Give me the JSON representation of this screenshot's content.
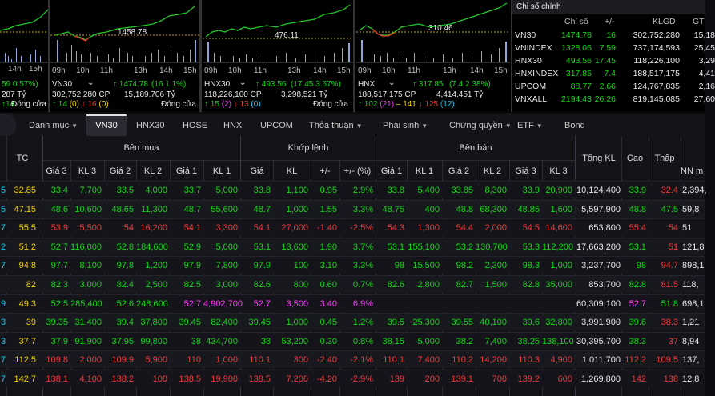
{
  "panels": [
    {
      "key": "p0",
      "chart_value": "",
      "times": [
        "14h",
        "15h"
      ],
      "pct": "59  0.57%)",
      "value_line": "287 Tỷ",
      "adv_line": [
        "14",
        "Đóng cửa"
      ]
    },
    {
      "key": "p1",
      "chart_value": "1458.78",
      "times": [
        "09h",
        "10h",
        "11h",
        "13h",
        "14h",
        "15h"
      ],
      "name": "VN30",
      "index": "1474.78",
      "change": "(16  1.1%)",
      "volume": "302,752,280 CP",
      "value": "15,189.706 Tỷ",
      "adv": [
        "14",
        "0",
        "16",
        "0"
      ],
      "status": "Đóng cửa"
    },
    {
      "key": "p2",
      "chart_value": "476.11",
      "times": [
        "09h",
        "10h",
        "11h",
        "13h",
        "14h",
        "15h"
      ],
      "name": "HNX30",
      "index": "493.56",
      "change": "(17.45  3.67%)",
      "volume": "118,226,100 CP",
      "value": "3,298.521 Tỷ",
      "adv": [
        "15",
        "2",
        "13",
        "0"
      ],
      "status": "Đóng cửa"
    },
    {
      "key": "p3",
      "chart_value": "310.46",
      "times": [
        "09h",
        "10h",
        "11h",
        "13h",
        "14h",
        "15h"
      ],
      "name": "HNX",
      "index": "317.85",
      "change": "(7.4  2.38%)",
      "volume": "188,517,175 CP",
      "value": "4,414.451 Tỷ",
      "adv": [
        "102",
        "21",
        "141",
        "125",
        "12"
      ],
      "status": "Đóng cửa"
    }
  ],
  "index_table": {
    "title": "Chỉ số chính",
    "headers": [
      "Chỉ số",
      "+/-",
      "KLGD",
      "GT"
    ],
    "rows": [
      {
        "name": "VN30",
        "value": "1474.78",
        "change": "16",
        "volume": "302,752,280",
        "gt": "15,18"
      },
      {
        "name": "VNINDEX",
        "value": "1328.05",
        "change": "7.59",
        "volume": "737,174,593",
        "gt": "25,45"
      },
      {
        "name": "HNX30",
        "value": "493.56",
        "change": "17.45",
        "volume": "118,226,100",
        "gt": "3,29"
      },
      {
        "name": "HNXINDEX",
        "value": "317.85",
        "change": "7.4",
        "volume": "188,517,175",
        "gt": "4,41"
      },
      {
        "name": "UPCOM",
        "value": "88.77",
        "change": "2.66",
        "volume": "124,767,835",
        "gt": "2,16"
      },
      {
        "name": "VNXALL",
        "value": "2194.43",
        "change": "26.26",
        "volume": "819,145,085",
        "gt": "27,60"
      }
    ]
  },
  "tabs": [
    {
      "label": "Danh mục",
      "dropdown": true
    },
    {
      "label": "VN30",
      "active": true
    },
    {
      "label": "HNX30"
    },
    {
      "label": "HOSE"
    },
    {
      "label": "HNX"
    },
    {
      "label": "UPCOM"
    },
    {
      "label": "Thỏa thuận",
      "dropdown": true
    },
    {
      "label": "Phái sinh",
      "dropdown": true
    },
    {
      "label": "Chứng quyền",
      "dropdown": true
    },
    {
      "label": "ETF",
      "dropdown": true
    },
    {
      "label": "Bond"
    }
  ],
  "table": {
    "group_headers": {
      "buy": "Bên mua",
      "match": "Khớp lệnh",
      "sell": "Bên bán"
    },
    "headers": {
      "tc": "TC",
      "buy": [
        "Giá 3",
        "KL 3",
        "Giá 2",
        "KL 2",
        "Giá 1",
        "KL 1"
      ],
      "match": [
        "Giá",
        "KL",
        "+/-",
        "+/- (%)"
      ],
      "sell": [
        "Giá 1",
        "KL 1",
        "Giá 2",
        "KL 2",
        "Giá 3",
        "KL 3"
      ],
      "total": "Tổng KL",
      "high": "Cao",
      "low": "Thấp",
      "nn": "NN m"
    },
    "rows": [
      {
        "lead": "5",
        "tc": "32.85",
        "b": [
          [
            "33.4",
            "g"
          ],
          [
            "7,700",
            "g"
          ],
          [
            "33.5",
            "g"
          ],
          [
            "4,000",
            "g"
          ],
          [
            "33.7",
            "g"
          ],
          [
            "5,000",
            "g"
          ]
        ],
        "m": [
          [
            "33.8",
            "g"
          ],
          [
            "1,100",
            "g"
          ],
          [
            "0.95",
            "g"
          ],
          [
            "2.9%",
            "g"
          ]
        ],
        "s": [
          [
            "33.8",
            "g"
          ],
          [
            "5,400",
            "g"
          ],
          [
            "33.85",
            "g"
          ],
          [
            "8,300",
            "g"
          ],
          [
            "33.9",
            "g"
          ],
          [
            "20,900",
            "g"
          ]
        ],
        "tot": "10,124,400",
        "hi": [
          "33.9",
          "g"
        ],
        "lo": [
          "32.4",
          "r"
        ],
        "nn": "2,394,"
      },
      {
        "lead": "5",
        "tc": "47.15",
        "b": [
          [
            "48.6",
            "g"
          ],
          [
            "10,600",
            "g"
          ],
          [
            "48.65",
            "g"
          ],
          [
            "11,300",
            "g"
          ],
          [
            "48.7",
            "g"
          ],
          [
            "55,600",
            "g"
          ]
        ],
        "m": [
          [
            "48.7",
            "g"
          ],
          [
            "1,000",
            "g"
          ],
          [
            "1.55",
            "g"
          ],
          [
            "3.3%",
            "g"
          ]
        ],
        "s": [
          [
            "48.75",
            "g"
          ],
          [
            "400",
            "g"
          ],
          [
            "48.8",
            "g"
          ],
          [
            "68,300",
            "g"
          ],
          [
            "48.85",
            "g"
          ],
          [
            "1,600",
            "g"
          ]
        ],
        "tot": "5,597,900",
        "hi": [
          "48.8",
          "g"
        ],
        "lo": [
          "47.5",
          "g"
        ],
        "nn": "59,8"
      },
      {
        "lead": "7",
        "tc": "55.5",
        "b": [
          [
            "53.9",
            "r"
          ],
          [
            "5,500",
            "r"
          ],
          [
            "54",
            "r"
          ],
          [
            "16,200",
            "r"
          ],
          [
            "54.1",
            "r"
          ],
          [
            "3,300",
            "r"
          ]
        ],
        "m": [
          [
            "54.1",
            "r"
          ],
          [
            "27,000",
            "r"
          ],
          [
            "-1.40",
            "r"
          ],
          [
            "-2.5%",
            "r"
          ]
        ],
        "s": [
          [
            "54.3",
            "r"
          ],
          [
            "1,300",
            "r"
          ],
          [
            "54.4",
            "r"
          ],
          [
            "2,000",
            "r"
          ],
          [
            "54.5",
            "r"
          ],
          [
            "14,600",
            "r"
          ]
        ],
        "tot": "653,800",
        "hi": [
          "55.4",
          "r"
        ],
        "lo": [
          "54",
          "r"
        ],
        "nn": "51"
      },
      {
        "lead": "2",
        "tc": "51.2",
        "b": [
          [
            "52.7",
            "g"
          ],
          [
            "116,000",
            "g"
          ],
          [
            "52.8",
            "g"
          ],
          [
            "184,600",
            "g"
          ],
          [
            "52.9",
            "g"
          ],
          [
            "5,000",
            "g"
          ]
        ],
        "m": [
          [
            "53.1",
            "g"
          ],
          [
            "13,600",
            "g"
          ],
          [
            "1.90",
            "g"
          ],
          [
            "3.7%",
            "g"
          ]
        ],
        "s": [
          [
            "53.1",
            "g"
          ],
          [
            "155,100",
            "g"
          ],
          [
            "53.2",
            "g"
          ],
          [
            "130,700",
            "g"
          ],
          [
            "53.3",
            "g"
          ],
          [
            "112,200",
            "g"
          ]
        ],
        "tot": "17,663,200",
        "hi": [
          "53.1",
          "g"
        ],
        "lo": [
          "51",
          "r"
        ],
        "nn": "121,8"
      },
      {
        "lead": "7",
        "tc": "94.8",
        "b": [
          [
            "97.7",
            "g"
          ],
          [
            "8,100",
            "g"
          ],
          [
            "97.8",
            "g"
          ],
          [
            "1,200",
            "g"
          ],
          [
            "97.9",
            "g"
          ],
          [
            "7,800",
            "g"
          ]
        ],
        "m": [
          [
            "97.9",
            "g"
          ],
          [
            "100",
            "g"
          ],
          [
            "3.10",
            "g"
          ],
          [
            "3.3%",
            "g"
          ]
        ],
        "s": [
          [
            "98",
            "g"
          ],
          [
            "15,500",
            "g"
          ],
          [
            "98.2",
            "g"
          ],
          [
            "2,300",
            "g"
          ],
          [
            "98.3",
            "g"
          ],
          [
            "1,000",
            "g"
          ]
        ],
        "tot": "3,237,700",
        "hi": [
          "98",
          "g"
        ],
        "lo": [
          "94.7",
          "r"
        ],
        "nn": "898,1"
      },
      {
        "lead": "",
        "tc": "82",
        "b": [
          [
            "82.3",
            "g"
          ],
          [
            "3,000",
            "g"
          ],
          [
            "82.4",
            "g"
          ],
          [
            "2,500",
            "g"
          ],
          [
            "82.5",
            "g"
          ],
          [
            "3,000",
            "g"
          ]
        ],
        "m": [
          [
            "82.6",
            "g"
          ],
          [
            "800",
            "g"
          ],
          [
            "0.60",
            "g"
          ],
          [
            "0.7%",
            "g"
          ]
        ],
        "s": [
          [
            "82.6",
            "g"
          ],
          [
            "2,800",
            "g"
          ],
          [
            "82.7",
            "g"
          ],
          [
            "1,500",
            "g"
          ],
          [
            "82.8",
            "g"
          ],
          [
            "35,000",
            "g"
          ]
        ],
        "tot": "853,700",
        "hi": [
          "82.8",
          "g"
        ],
        "lo": [
          "81.5",
          "r"
        ],
        "nn": "118,"
      },
      {
        "lead": "9",
        "tc": "49.3",
        "b": [
          [
            "52.5",
            "g"
          ],
          [
            "285,400",
            "g"
          ],
          [
            "52.6",
            "g"
          ],
          [
            "248,600",
            "g"
          ],
          [
            "52.7",
            "p"
          ],
          [
            "4,902,700",
            "p"
          ]
        ],
        "m": [
          [
            "52.7",
            "p"
          ],
          [
            "3,500",
            "p"
          ],
          [
            "3.40",
            "p"
          ],
          [
            "6.9%",
            "p"
          ]
        ],
        "s": [
          [
            "",
            ""
          ],
          [
            "",
            ""
          ],
          [
            "",
            ""
          ],
          [
            "",
            ""
          ],
          [
            "",
            ""
          ],
          [
            "",
            ""
          ]
        ],
        "tot": "60,309,100",
        "hi": [
          "52.7",
          "p"
        ],
        "lo": [
          "51.8",
          "g"
        ],
        "nn": "698,1"
      },
      {
        "lead": "3",
        "tc": "39",
        "b": [
          [
            "39.35",
            "g"
          ],
          [
            "31,400",
            "g"
          ],
          [
            "39.4",
            "g"
          ],
          [
            "37,800",
            "g"
          ],
          [
            "39.45",
            "g"
          ],
          [
            "82,400",
            "g"
          ]
        ],
        "m": [
          [
            "39.45",
            "g"
          ],
          [
            "1,000",
            "g"
          ],
          [
            "0.45",
            "g"
          ],
          [
            "1.2%",
            "g"
          ]
        ],
        "s": [
          [
            "39.5",
            "g"
          ],
          [
            "25,300",
            "g"
          ],
          [
            "39.55",
            "g"
          ],
          [
            "40,100",
            "g"
          ],
          [
            "39.6",
            "g"
          ],
          [
            "32,800",
            "g"
          ]
        ],
        "tot": "3,991,900",
        "hi": [
          "39.6",
          "g"
        ],
        "lo": [
          "38.3",
          "r"
        ],
        "nn": "1,21"
      },
      {
        "lead": "3",
        "tc": "37.7",
        "b": [
          [
            "37.9",
            "g"
          ],
          [
            "91,900",
            "g"
          ],
          [
            "37.95",
            "g"
          ],
          [
            "99,800",
            "g"
          ],
          [
            "38",
            "g"
          ],
          [
            "434,700",
            "g"
          ]
        ],
        "m": [
          [
            "38",
            "g"
          ],
          [
            "53,200",
            "g"
          ],
          [
            "0.30",
            "g"
          ],
          [
            "0.8%",
            "g"
          ]
        ],
        "s": [
          [
            "38.15",
            "g"
          ],
          [
            "5,000",
            "g"
          ],
          [
            "38.2",
            "g"
          ],
          [
            "7,400",
            "g"
          ],
          [
            "38.25",
            "g"
          ],
          [
            "138,100",
            "g"
          ]
        ],
        "tot": "30,395,700",
        "hi": [
          "38.3",
          "g"
        ],
        "lo": [
          "37",
          "r"
        ],
        "nn": "8,94"
      },
      {
        "lead": "7",
        "tc": "112.5",
        "b": [
          [
            "109.8",
            "r"
          ],
          [
            "2,000",
            "r"
          ],
          [
            "109.9",
            "r"
          ],
          [
            "5,900",
            "r"
          ],
          [
            "110",
            "r"
          ],
          [
            "1,000",
            "r"
          ]
        ],
        "m": [
          [
            "110.1",
            "r"
          ],
          [
            "300",
            "r"
          ],
          [
            "-2.40",
            "r"
          ],
          [
            "-2.1%",
            "r"
          ]
        ],
        "s": [
          [
            "110.1",
            "r"
          ],
          [
            "7,400",
            "r"
          ],
          [
            "110.2",
            "r"
          ],
          [
            "14,200",
            "r"
          ],
          [
            "110.3",
            "r"
          ],
          [
            "4,900",
            "r"
          ]
        ],
        "tot": "1,011,700",
        "hi": [
          "112.2",
          "r"
        ],
        "lo": [
          "109.5",
          "r"
        ],
        "nn": "137,"
      },
      {
        "lead": "7",
        "tc": "142.7",
        "b": [
          [
            "138.1",
            "r"
          ],
          [
            "4,100",
            "r"
          ],
          [
            "138.2",
            "r"
          ],
          [
            "100",
            "r"
          ],
          [
            "138.5",
            "r"
          ],
          [
            "19,900",
            "r"
          ]
        ],
        "m": [
          [
            "138.5",
            "r"
          ],
          [
            "7,200",
            "r"
          ],
          [
            "-4.20",
            "r"
          ],
          [
            "-2.9%",
            "r"
          ]
        ],
        "s": [
          [
            "139",
            "r"
          ],
          [
            "200",
            "r"
          ],
          [
            "139.1",
            "r"
          ],
          [
            "700",
            "r"
          ],
          [
            "139.2",
            "r"
          ],
          [
            "600",
            "r"
          ]
        ],
        "tot": "1,269,800",
        "hi": [
          "142",
          "r"
        ],
        "lo": [
          "138",
          "r"
        ],
        "nn": "12,8"
      }
    ]
  }
}
